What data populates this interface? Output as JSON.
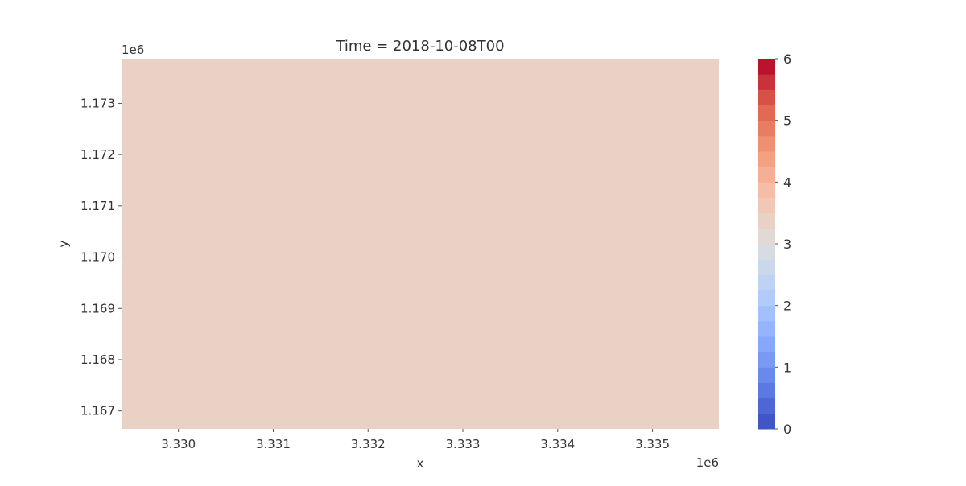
{
  "chart_data": {
    "type": "heatmap",
    "title": "Time = 2018-10-08T00",
    "xlabel": "x",
    "ylabel": "y",
    "x_offset_label": "1e6",
    "y_offset_label": "1e6",
    "x_ticks": [
      {
        "value": 3.33,
        "label": "3.330"
      },
      {
        "value": 3.331,
        "label": "3.331"
      },
      {
        "value": 3.332,
        "label": "3.332"
      },
      {
        "value": 3.333,
        "label": "3.333"
      },
      {
        "value": 3.334,
        "label": "3.334"
      },
      {
        "value": 3.335,
        "label": "3.335"
      }
    ],
    "y_ticks": [
      {
        "value": 1.167,
        "label": "1.167"
      },
      {
        "value": 1.168,
        "label": "1.168"
      },
      {
        "value": 1.169,
        "label": "1.169"
      },
      {
        "value": 1.17,
        "label": "1.170"
      },
      {
        "value": 1.171,
        "label": "1.171"
      },
      {
        "value": 1.172,
        "label": "1.172"
      },
      {
        "value": 1.173,
        "label": "1.173"
      }
    ],
    "xlim": [
      3.3294,
      3.3357
    ],
    "ylim": [
      1.16665,
      1.17387
    ],
    "cells": [
      {
        "x_range": [
          3.3294,
          3.3357
        ],
        "y_range": [
          1.16665,
          1.17387
        ],
        "value": 3.25
      }
    ],
    "grid": false,
    "colorbar": {
      "colormap": "coolwarm",
      "range": [
        0,
        6
      ],
      "levels": 24,
      "ticks": [
        {
          "value": 0,
          "label": "0"
        },
        {
          "value": 1,
          "label": "1"
        },
        {
          "value": 2,
          "label": "2"
        },
        {
          "value": 3,
          "label": "3"
        },
        {
          "value": 4,
          "label": "4"
        },
        {
          "value": 5,
          "label": "5"
        },
        {
          "value": 6,
          "label": "6"
        }
      ]
    }
  }
}
